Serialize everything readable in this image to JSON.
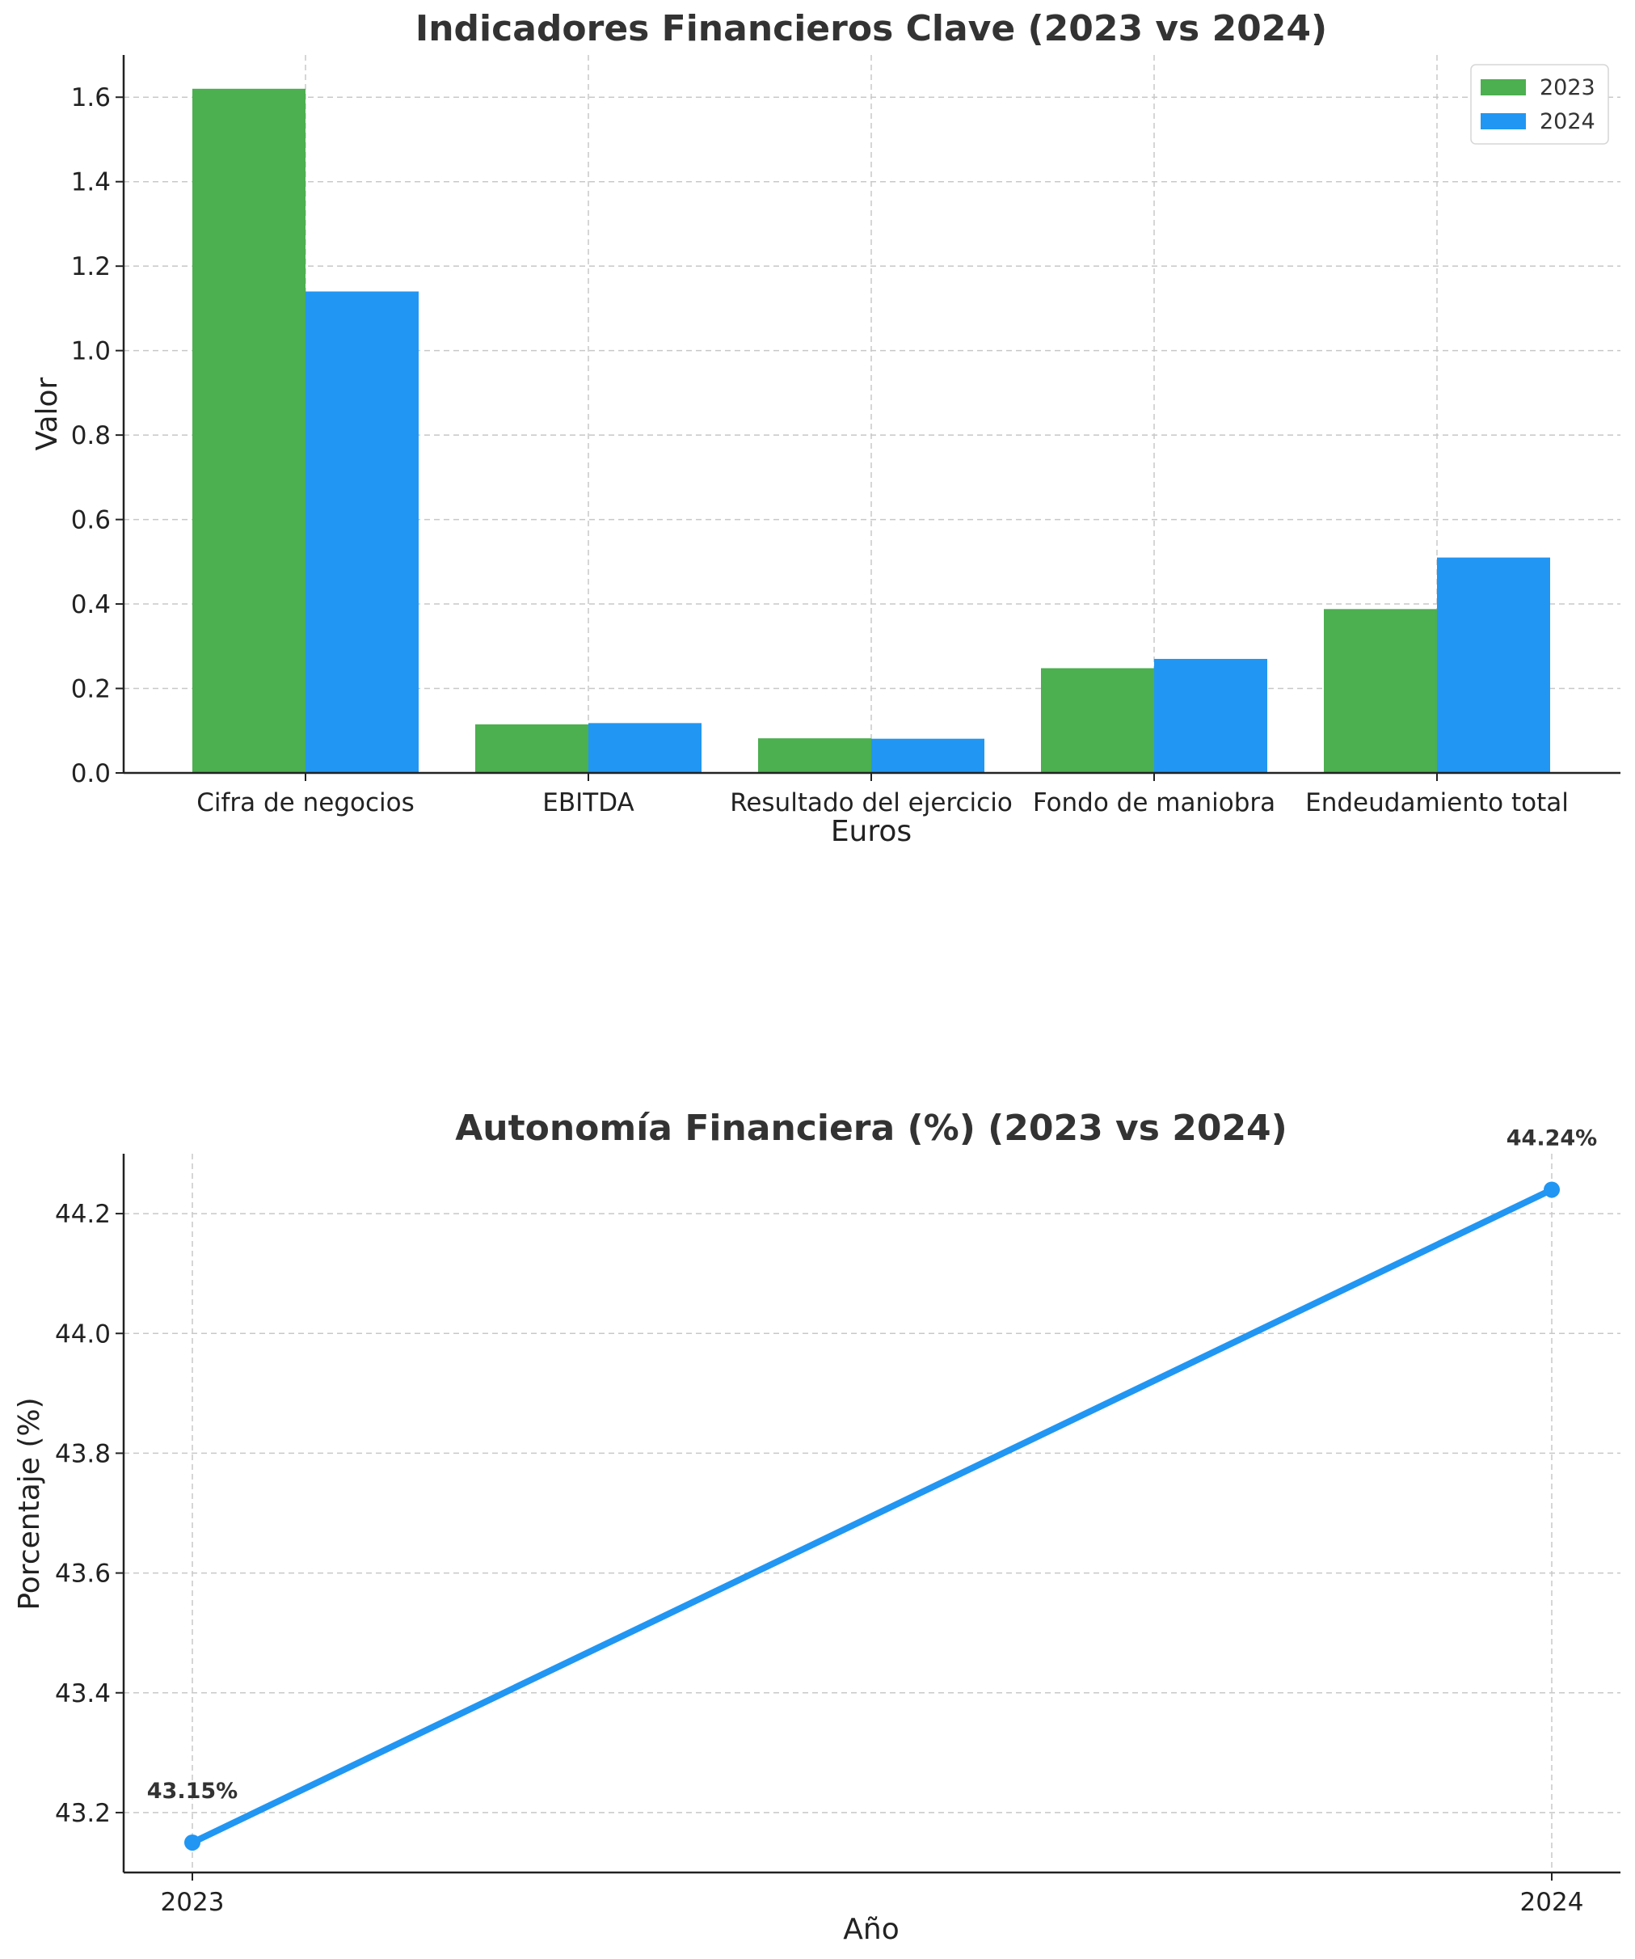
{
  "chart_data": [
    {
      "type": "bar",
      "title": "Indicadores Financieros Clave (2023 vs 2024)",
      "xlabel": "Euros",
      "ylabel": "Valor",
      "categories": [
        "Cifra de negocios",
        "EBITDA",
        "Resultado del ejercicio",
        "Fondo de maniobra",
        "Endeudamiento total"
      ],
      "series": [
        {
          "name": "2023",
          "color": "#4caf50",
          "values": [
            1.62,
            0.115,
            0.082,
            0.248,
            0.388
          ]
        },
        {
          "name": "2024",
          "color": "#2196f3",
          "values": [
            1.14,
            0.118,
            0.081,
            0.27,
            0.51
          ]
        }
      ],
      "ylim": [
        0,
        1.7
      ],
      "yticks": [
        "0.0",
        "0.2",
        "0.4",
        "0.6",
        "0.8",
        "1.0",
        "1.2",
        "1.4",
        "1.6"
      ],
      "grid": true,
      "legend_position": "top-right"
    },
    {
      "type": "line",
      "title": "Autonomía Financiera (%) (2023 vs 2024)",
      "xlabel": "Año",
      "ylabel": "Porcentaje (%)",
      "x": [
        "2023",
        "2024"
      ],
      "series": [
        {
          "color": "#2196f3",
          "values": [
            43.15,
            44.24
          ],
          "data_labels": [
            "43.15%",
            "44.24%"
          ]
        }
      ],
      "ylim": [
        43.1,
        44.3
      ],
      "yticks": [
        "43.2",
        "43.4",
        "43.6",
        "43.8",
        "44.0",
        "44.2"
      ],
      "grid": true
    }
  ]
}
